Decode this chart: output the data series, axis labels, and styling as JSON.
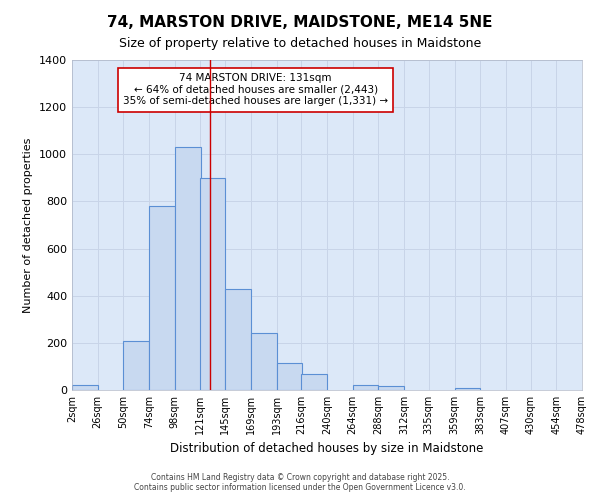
{
  "title1": "74, MARSTON DRIVE, MAIDSTONE, ME14 5NE",
  "title2": "Size of property relative to detached houses in Maidstone",
  "xlabel": "Distribution of detached houses by size in Maidstone",
  "ylabel": "Number of detached properties",
  "bin_labels": [
    "2sqm",
    "26sqm",
    "50sqm",
    "74sqm",
    "98sqm",
    "121sqm",
    "145sqm",
    "169sqm",
    "193sqm",
    "216sqm",
    "240sqm",
    "264sqm",
    "288sqm",
    "312sqm",
    "335sqm",
    "359sqm",
    "383sqm",
    "407sqm",
    "430sqm",
    "454sqm",
    "478sqm"
  ],
  "bin_edges": [
    2,
    26,
    50,
    74,
    98,
    121,
    145,
    169,
    193,
    216,
    240,
    264,
    288,
    312,
    335,
    359,
    383,
    407,
    430,
    454,
    478
  ],
  "bar_heights": [
    20,
    0,
    210,
    780,
    1030,
    900,
    430,
    240,
    115,
    70,
    0,
    20,
    15,
    0,
    0,
    10,
    0,
    0,
    0,
    0
  ],
  "bar_color": "#c8d9f0",
  "bar_edge_color": "#5b8fd4",
  "grid_color": "#c8d4e8",
  "plot_bg_color": "#dce8f8",
  "fig_bg_color": "#ffffff",
  "red_line_x": 131,
  "ylim": [
    0,
    1400
  ],
  "yticks": [
    0,
    200,
    400,
    600,
    800,
    1000,
    1200,
    1400
  ],
  "annotation_text": "74 MARSTON DRIVE: 131sqm\n← 64% of detached houses are smaller (2,443)\n35% of semi-detached houses are larger (1,331) →",
  "annotation_box_color": "#ffffff",
  "annotation_border_color": "#cc0000",
  "footer1": "Contains HM Land Registry data © Crown copyright and database right 2025.",
  "footer2": "Contains public sector information licensed under the Open Government Licence v3.0."
}
